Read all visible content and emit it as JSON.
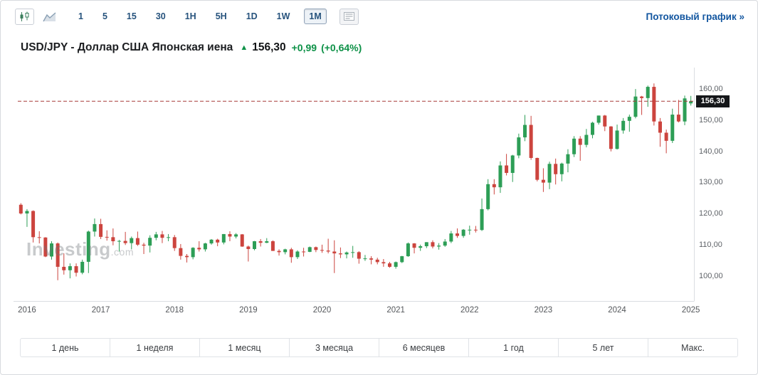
{
  "toolbar": {
    "chart_type_icons": [
      "candlestick-chart-icon",
      "area-chart-icon",
      "news-panel-icon"
    ],
    "intervals": [
      {
        "label": "1",
        "name": "interval-1min-button"
      },
      {
        "label": "5",
        "name": "interval-5min-button"
      },
      {
        "label": "15",
        "name": "interval-15min-button"
      },
      {
        "label": "30",
        "name": "interval-30min-button"
      },
      {
        "label": "1H",
        "name": "interval-1h-button"
      },
      {
        "label": "5H",
        "name": "interval-5h-button"
      },
      {
        "label": "1D",
        "name": "interval-1d-button"
      },
      {
        "label": "1W",
        "name": "interval-1w-button"
      },
      {
        "label": "1M",
        "name": "interval-1m-button"
      }
    ],
    "selected_interval": "1M",
    "streaming_link": "Потоковый график »"
  },
  "header": {
    "title": "USD/JPY - Доллар США Японская иена",
    "arrow": "▲",
    "price": "156,30",
    "change": "+0,99",
    "change_pct": "(+0,64%)"
  },
  "watermark": {
    "text": "Investing",
    "suffix": ".com"
  },
  "range_buttons": [
    {
      "label": "1 день",
      "name": "range-1-day-button"
    },
    {
      "label": "1 неделя",
      "name": "range-1-week-button"
    },
    {
      "label": "1 месяц",
      "name": "range-1-month-button"
    },
    {
      "label": "3 месяца",
      "name": "range-3-months-button"
    },
    {
      "label": "6 месяцев",
      "name": "range-6-months-button"
    },
    {
      "label": "1 год",
      "name": "range-1-year-button"
    },
    {
      "label": "5 лет",
      "name": "range-5-years-button"
    },
    {
      "label": "Макс.",
      "name": "range-max-button"
    }
  ],
  "colors": {
    "up": "#2d9e56",
    "down": "#cc443e",
    "link_blue": "#1256a0",
    "change_green": "#0d9147",
    "price_line": "#a83a38",
    "price_tag_bg": "#15171a"
  },
  "chart_data": {
    "type": "candlestick",
    "symbol": "USD/JPY",
    "interval": "1M",
    "title": "USD/JPY monthly candlestick chart 2016-2025",
    "x_labels": [
      "2016",
      "2017",
      "2018",
      "2019",
      "2020",
      "2021",
      "2022",
      "2023",
      "2024",
      "2025"
    ],
    "y_ticks": [
      100,
      110,
      120,
      130,
      140,
      150,
      160
    ],
    "y_tick_labels": [
      "100,00",
      "110,00",
      "120,00",
      "130,00",
      "140,00",
      "150,00",
      "160,00"
    ],
    "ylim": [
      92,
      168
    ],
    "legend": "none",
    "grid": "off",
    "last_price": 156.3,
    "last_price_label": "156,30",
    "up_color": "#2d9e56",
    "down_color": "#cc443e",
    "price_line_color": "#a83a38",
    "columns": [
      "month",
      "open",
      "high",
      "low",
      "close"
    ],
    "candles": [
      [
        "2015-12",
        123.1,
        123.6,
        120.0,
        120.3
      ],
      [
        "2016-01",
        120.3,
        121.7,
        116.0,
        121.1
      ],
      [
        "2016-02",
        121.1,
        121.3,
        111.0,
        112.7
      ],
      [
        "2016-03",
        112.7,
        114.6,
        110.7,
        112.6
      ],
      [
        "2016-04",
        112.6,
        112.7,
        106.3,
        106.5
      ],
      [
        "2016-05",
        106.5,
        111.4,
        105.5,
        110.7
      ],
      [
        "2016-06",
        110.7,
        111.0,
        98.9,
        103.2
      ],
      [
        "2016-07",
        103.2,
        107.5,
        100.7,
        102.1
      ],
      [
        "2016-08",
        102.1,
        104.3,
        99.5,
        103.4
      ],
      [
        "2016-09",
        103.4,
        104.3,
        100.1,
        101.3
      ],
      [
        "2016-10",
        101.3,
        105.5,
        100.8,
        104.8
      ],
      [
        "2016-11",
        104.8,
        114.8,
        101.2,
        114.5
      ],
      [
        "2016-12",
        114.5,
        118.7,
        112.9,
        116.9
      ],
      [
        "2017-01",
        116.9,
        118.6,
        112.1,
        112.8
      ],
      [
        "2017-02",
        112.8,
        114.9,
        111.6,
        112.7
      ],
      [
        "2017-03",
        112.7,
        115.5,
        110.1,
        111.4
      ],
      [
        "2017-04",
        111.4,
        111.8,
        108.1,
        111.5
      ],
      [
        "2017-05",
        111.5,
        114.4,
        110.2,
        110.8
      ],
      [
        "2017-06",
        110.8,
        112.9,
        108.8,
        112.4
      ],
      [
        "2017-07",
        112.4,
        114.5,
        109.9,
        110.3
      ],
      [
        "2017-08",
        110.3,
        110.9,
        107.3,
        110.0
      ],
      [
        "2017-09",
        110.0,
        113.3,
        107.8,
        112.5
      ],
      [
        "2017-10",
        112.5,
        114.4,
        111.7,
        113.6
      ],
      [
        "2017-11",
        113.6,
        114.7,
        110.8,
        112.5
      ],
      [
        "2017-12",
        112.5,
        113.7,
        111.4,
        112.7
      ],
      [
        "2018-01",
        112.7,
        113.4,
        108.3,
        109.2
      ],
      [
        "2018-02",
        109.2,
        110.5,
        105.5,
        106.7
      ],
      [
        "2018-03",
        106.7,
        107.3,
        104.6,
        106.3
      ],
      [
        "2018-04",
        106.3,
        109.5,
        105.6,
        109.3
      ],
      [
        "2018-05",
        109.3,
        111.4,
        108.1,
        108.8
      ],
      [
        "2018-06",
        108.8,
        110.9,
        108.1,
        110.7
      ],
      [
        "2018-07",
        110.7,
        112.1,
        110.3,
        111.9
      ],
      [
        "2018-08",
        111.9,
        112.2,
        109.8,
        111.0
      ],
      [
        "2018-09",
        111.0,
        113.7,
        110.4,
        113.7
      ],
      [
        "2018-10",
        113.7,
        114.6,
        111.4,
        112.9
      ],
      [
        "2018-11",
        112.9,
        114.0,
        112.3,
        113.6
      ],
      [
        "2018-12",
        113.6,
        113.7,
        109.6,
        109.7
      ],
      [
        "2019-01",
        109.7,
        110.0,
        104.9,
        108.9
      ],
      [
        "2019-02",
        108.9,
        111.5,
        108.5,
        111.4
      ],
      [
        "2019-03",
        111.4,
        112.1,
        109.7,
        110.9
      ],
      [
        "2019-04",
        110.9,
        112.4,
        110.8,
        111.4
      ],
      [
        "2019-05",
        111.4,
        111.7,
        108.3,
        108.3
      ],
      [
        "2019-06",
        108.3,
        108.8,
        106.8,
        107.9
      ],
      [
        "2019-07",
        107.9,
        109.0,
        107.2,
        108.8
      ],
      [
        "2019-08",
        108.8,
        109.3,
        104.5,
        106.3
      ],
      [
        "2019-09",
        106.3,
        108.5,
        105.7,
        108.1
      ],
      [
        "2019-10",
        108.1,
        109.3,
        106.5,
        108.0
      ],
      [
        "2019-11",
        108.0,
        109.7,
        107.9,
        109.5
      ],
      [
        "2019-12",
        109.5,
        109.7,
        107.9,
        108.6
      ],
      [
        "2020-01",
        108.6,
        110.3,
        107.7,
        108.4
      ],
      [
        "2020-02",
        108.4,
        112.2,
        107.5,
        108.1
      ],
      [
        "2020-03",
        108.1,
        111.7,
        101.2,
        107.5
      ],
      [
        "2020-04",
        107.5,
        109.4,
        106.0,
        107.2
      ],
      [
        "2020-05",
        107.2,
        108.1,
        105.9,
        107.8
      ],
      [
        "2020-06",
        107.8,
        109.9,
        106.1,
        107.9
      ],
      [
        "2020-07",
        107.9,
        108.2,
        104.2,
        105.8
      ],
      [
        "2020-08",
        105.8,
        107.0,
        105.1,
        105.9
      ],
      [
        "2020-09",
        105.9,
        106.6,
        104.0,
        105.5
      ],
      [
        "2020-10",
        105.5,
        106.1,
        104.0,
        104.7
      ],
      [
        "2020-11",
        104.7,
        105.7,
        103.2,
        104.3
      ],
      [
        "2020-12",
        104.3,
        104.8,
        102.9,
        103.2
      ],
      [
        "2021-01",
        103.2,
        104.9,
        102.6,
        104.7
      ],
      [
        "2021-02",
        104.7,
        106.7,
        104.4,
        106.6
      ],
      [
        "2021-03",
        106.6,
        111.0,
        106.4,
        110.7
      ],
      [
        "2021-04",
        110.7,
        110.8,
        107.5,
        109.3
      ],
      [
        "2021-05",
        109.3,
        110.3,
        108.3,
        109.8
      ],
      [
        "2021-06",
        109.8,
        111.1,
        109.2,
        111.1
      ],
      [
        "2021-07",
        111.1,
        111.7,
        109.1,
        109.7
      ],
      [
        "2021-08",
        109.7,
        110.8,
        108.7,
        110.0
      ],
      [
        "2021-09",
        110.0,
        112.1,
        109.6,
        111.3
      ],
      [
        "2021-10",
        111.3,
        114.7,
        110.8,
        113.9
      ],
      [
        "2021-11",
        113.9,
        115.5,
        112.5,
        113.1
      ],
      [
        "2021-12",
        113.1,
        115.3,
        112.5,
        115.1
      ],
      [
        "2022-01",
        115.1,
        116.4,
        113.5,
        115.1
      ],
      [
        "2022-02",
        115.1,
        116.3,
        114.2,
        115.0
      ],
      [
        "2022-03",
        115.0,
        125.1,
        114.7,
        121.7
      ],
      [
        "2022-04",
        121.7,
        131.3,
        121.3,
        129.7
      ],
      [
        "2022-05",
        129.7,
        131.3,
        126.4,
        128.7
      ],
      [
        "2022-06",
        128.7,
        137.0,
        126.9,
        135.7
      ],
      [
        "2022-07",
        135.7,
        139.4,
        132.5,
        133.3
      ],
      [
        "2022-08",
        133.3,
        139.1,
        130.4,
        138.9
      ],
      [
        "2022-09",
        138.9,
        145.9,
        138.0,
        144.7
      ],
      [
        "2022-10",
        144.7,
        151.9,
        143.5,
        148.7
      ],
      [
        "2022-11",
        148.7,
        151.6,
        137.5,
        138.1
      ],
      [
        "2022-12",
        138.1,
        138.2,
        130.6,
        131.1
      ],
      [
        "2023-01",
        131.1,
        134.8,
        127.2,
        130.2
      ],
      [
        "2023-02",
        130.2,
        136.9,
        128.1,
        136.2
      ],
      [
        "2023-03",
        136.2,
        137.9,
        129.6,
        132.9
      ],
      [
        "2023-04",
        132.9,
        136.6,
        130.6,
        136.3
      ],
      [
        "2023-05",
        136.3,
        140.9,
        133.5,
        139.3
      ],
      [
        "2023-06",
        139.3,
        145.1,
        138.4,
        144.3
      ],
      [
        "2023-07",
        144.3,
        145.1,
        137.2,
        142.3
      ],
      [
        "2023-08",
        142.3,
        147.4,
        141.5,
        145.5
      ],
      [
        "2023-09",
        145.5,
        149.7,
        144.4,
        149.4
      ],
      [
        "2023-10",
        149.4,
        151.7,
        148.8,
        151.7
      ],
      [
        "2023-11",
        151.7,
        151.9,
        146.7,
        148.2
      ],
      [
        "2023-12",
        148.2,
        148.3,
        140.2,
        141.0
      ],
      [
        "2024-01",
        141.0,
        148.8,
        140.8,
        146.9
      ],
      [
        "2024-02",
        146.9,
        150.9,
        145.9,
        150.0
      ],
      [
        "2024-03",
        150.0,
        152.0,
        146.5,
        151.3
      ],
      [
        "2024-04",
        151.3,
        160.2,
        150.8,
        157.8
      ],
      [
        "2024-05",
        157.8,
        158.0,
        151.9,
        157.3
      ],
      [
        "2024-06",
        157.3,
        161.3,
        154.5,
        160.9
      ],
      [
        "2024-07",
        160.9,
        162.0,
        148.5,
        149.8
      ],
      [
        "2024-08",
        149.8,
        150.9,
        141.7,
        146.2
      ],
      [
        "2024-09",
        146.2,
        147.2,
        139.6,
        143.6
      ],
      [
        "2024-10",
        143.6,
        153.9,
        142.9,
        152.0
      ],
      [
        "2024-11",
        152.0,
        156.7,
        149.5,
        149.8
      ],
      [
        "2024-12",
        149.8,
        158.1,
        148.6,
        157.2
      ],
      [
        "2025-01",
        155.6,
        158.0,
        154.9,
        156.3
      ]
    ]
  }
}
